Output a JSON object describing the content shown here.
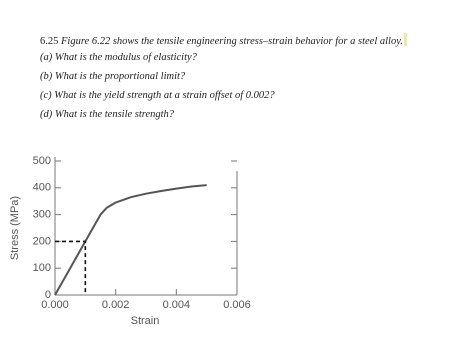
{
  "problem": {
    "number": "6.25",
    "statement": "Figure 6.22 shows the tensile engineering stress–strain behavior for a steel alloy.",
    "questions": [
      "(a) What is the modulus of elasticity?",
      "(b) What is the proportional limit?",
      "(c) What is the yield strength at a strain offset of 0.002?",
      "(d) What is the tensile strength?"
    ]
  },
  "chart_data": {
    "type": "line",
    "xlabel": "Strain",
    "ylabel": "Stress (MPa)",
    "series": [
      {
        "color": "#555555",
        "x": [
          0,
          0.0005,
          0.001,
          0.0013,
          0.0015,
          0.0017,
          0.002,
          0.0025,
          0.003,
          0.0035,
          0.004,
          0.0045,
          0.005
        ],
        "values": [
          0,
          100,
          200,
          260,
          300,
          325,
          345,
          365,
          378,
          388,
          397,
          405,
          410
        ]
      },
      {
        "color": "#111111",
        "dashed": true,
        "x": [
          0,
          0.001,
          0.001
        ],
        "values": [
          200,
          200,
          0
        ]
      }
    ],
    "xlim": [
      0,
      0.006
    ],
    "ylim": [
      0,
      500
    ],
    "xticks": [
      {
        "value": 0,
        "label": "0.000"
      },
      {
        "value": 0.002,
        "label": "0.002"
      },
      {
        "value": 0.004,
        "label": "0.004"
      },
      {
        "value": 0.006,
        "label": "0.006"
      }
    ],
    "yticks": [
      0,
      100,
      200,
      300,
      400,
      500
    ]
  }
}
